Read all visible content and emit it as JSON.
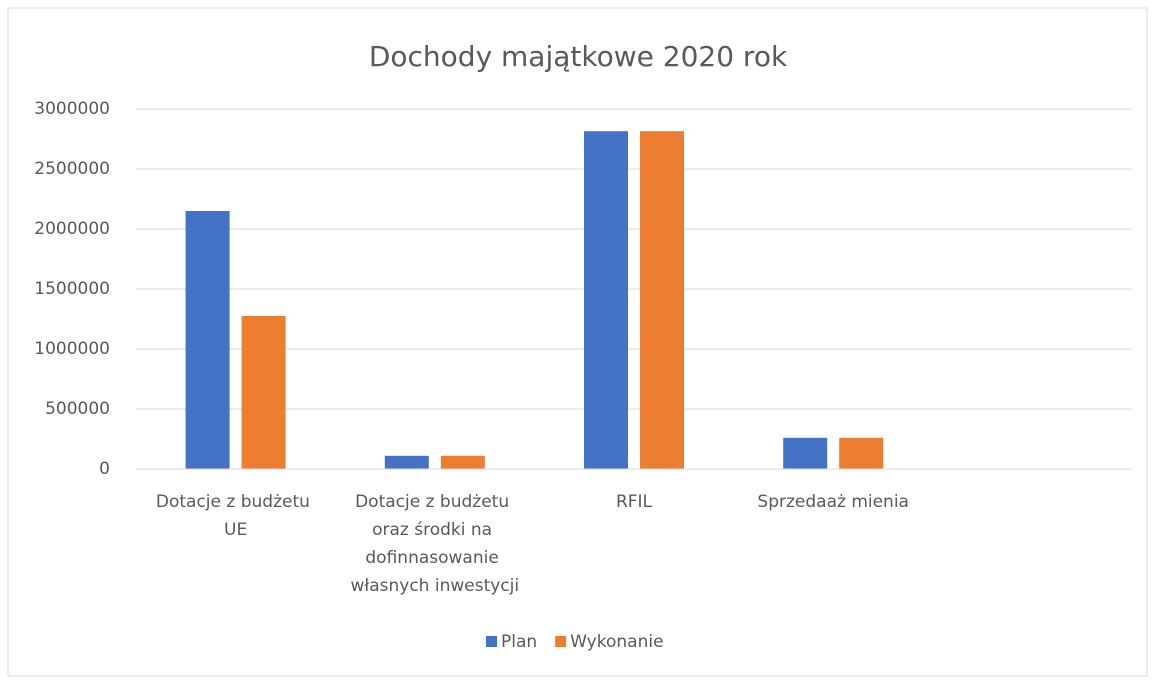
{
  "chart_data": {
    "type": "bar",
    "title": "Dochody majątkowe 2020 rok",
    "categories": [
      "Dotacje z budżetu UE",
      "Dotacje z budżetu oraz środki na dofinnasowanie własnych inwestycji",
      "RFIL",
      "Sprzedaaż mienia",
      null
    ],
    "series": [
      {
        "name": "Plan",
        "color": "#4472c4",
        "values": [
          2150000,
          110000,
          2815000,
          260000,
          null
        ]
      },
      {
        "name": "Wykonanie",
        "color": "#ed7d31",
        "values": [
          1275000,
          110000,
          2815000,
          260000,
          null
        ]
      }
    ],
    "ylim": [
      0,
      3000000
    ],
    "yticks": [
      0,
      500000,
      1000000,
      1500000,
      2000000,
      2500000,
      3000000
    ],
    "grid": true,
    "legend": "bottom"
  }
}
